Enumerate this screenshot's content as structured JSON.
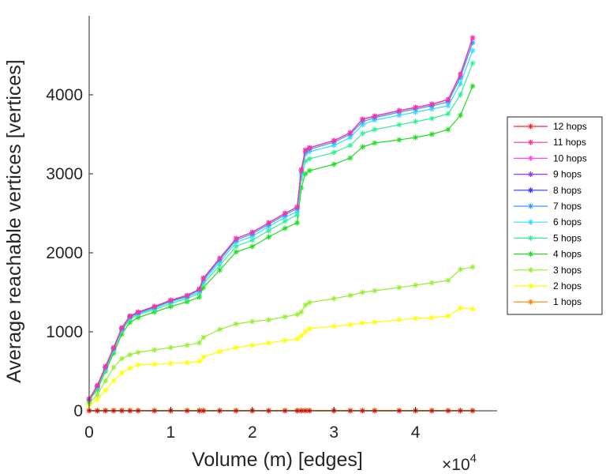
{
  "chart_data": {
    "type": "line",
    "title": "",
    "xlabel": "Volume (m) [edges]",
    "ylabel": "Average reachable vertices [vertices]",
    "x_multiplier_label": "×10",
    "x_multiplier_exp": "4",
    "xlim": [
      0,
      50000
    ],
    "ylim": [
      0,
      5000
    ],
    "x_ticks": [
      0,
      10000,
      20000,
      30000,
      40000
    ],
    "x_tick_labels": [
      "0",
      "1",
      "2",
      "3",
      "4"
    ],
    "y_ticks": [
      0,
      1000,
      2000,
      3000,
      4000
    ],
    "y_tick_labels": [
      "0",
      "1000",
      "2000",
      "3000",
      "4000"
    ],
    "legend_position": "right",
    "x": [
      0,
      1000,
      2000,
      3000,
      4000,
      5000,
      6000,
      8000,
      10000,
      12000,
      13500,
      14000,
      16000,
      18000,
      20000,
      22000,
      24000,
      25500,
      26000,
      26500,
      27000,
      30000,
      32000,
      33500,
      35000,
      38000,
      40000,
      42000,
      44000,
      45500,
      47000
    ],
    "series": [
      {
        "name": "12 hops",
        "color": "#ff2222",
        "values": [
          0,
          0,
          0,
          0,
          0,
          0,
          0,
          0,
          0,
          0,
          0,
          0,
          0,
          0,
          0,
          0,
          0,
          0,
          0,
          0,
          0,
          0,
          0,
          0,
          0,
          0,
          0,
          0,
          0,
          0,
          0
        ]
      },
      {
        "name": "11 hops",
        "color": "#ff3399",
        "values": [
          150,
          320,
          560,
          800,
          1050,
          1200,
          1250,
          1320,
          1400,
          1460,
          1540,
          1680,
          1930,
          2180,
          2260,
          2380,
          2500,
          2580,
          3050,
          3300,
          3330,
          3420,
          3520,
          3690,
          3730,
          3800,
          3840,
          3880,
          3940,
          4260,
          4720
        ]
      },
      {
        "name": "10 hops",
        "color": "#ff44ff",
        "values": [
          150,
          320,
          560,
          800,
          1050,
          1200,
          1250,
          1320,
          1400,
          1460,
          1540,
          1680,
          1930,
          2180,
          2260,
          2380,
          2500,
          2580,
          3050,
          3300,
          3330,
          3420,
          3520,
          3690,
          3730,
          3800,
          3840,
          3880,
          3940,
          4260,
          4720
        ]
      },
      {
        "name": "9 hops",
        "color": "#9933ff",
        "values": [
          150,
          320,
          560,
          800,
          1050,
          1200,
          1250,
          1320,
          1400,
          1460,
          1540,
          1680,
          1930,
          2180,
          2260,
          2380,
          2500,
          2580,
          3050,
          3300,
          3330,
          3420,
          3520,
          3690,
          3730,
          3800,
          3840,
          3880,
          3940,
          4260,
          4720
        ]
      },
      {
        "name": "8 hops",
        "color": "#3333ff",
        "values": [
          150,
          320,
          560,
          800,
          1050,
          1200,
          1250,
          1320,
          1400,
          1460,
          1540,
          1680,
          1930,
          2180,
          2260,
          2380,
          2500,
          2580,
          3050,
          3300,
          3330,
          3420,
          3520,
          3690,
          3730,
          3800,
          3840,
          3880,
          3940,
          4260,
          4720
        ]
      },
      {
        "name": "7 hops",
        "color": "#3399ff",
        "values": [
          150,
          310,
          550,
          790,
          1040,
          1190,
          1240,
          1310,
          1390,
          1450,
          1530,
          1660,
          1910,
          2160,
          2240,
          2360,
          2480,
          2560,
          3030,
          3280,
          3310,
          3400,
          3500,
          3660,
          3710,
          3780,
          3820,
          3860,
          3910,
          4220,
          4660
        ]
      },
      {
        "name": "6 hops",
        "color": "#33ddff",
        "values": [
          145,
          300,
          540,
          780,
          1030,
          1180,
          1230,
          1300,
          1380,
          1440,
          1510,
          1640,
          1880,
          2130,
          2210,
          2330,
          2450,
          2520,
          2990,
          3250,
          3280,
          3360,
          3460,
          3620,
          3680,
          3740,
          3780,
          3820,
          3860,
          4140,
          4560
        ]
      },
      {
        "name": "5 hops",
        "color": "#33ee99",
        "values": [
          140,
          290,
          520,
          760,
          1010,
          1160,
          1220,
          1280,
          1360,
          1420,
          1490,
          1610,
          1840,
          2080,
          2160,
          2280,
          2400,
          2480,
          2930,
          3160,
          3190,
          3270,
          3360,
          3510,
          3560,
          3620,
          3660,
          3700,
          3760,
          4000,
          4400
        ]
      },
      {
        "name": "4 hops",
        "color": "#22dd22",
        "values": [
          130,
          270,
          500,
          730,
          970,
          1120,
          1180,
          1250,
          1320,
          1380,
          1440,
          1560,
          1780,
          2010,
          2080,
          2200,
          2310,
          2380,
          2820,
          3000,
          3040,
          3120,
          3200,
          3340,
          3390,
          3430,
          3460,
          3500,
          3560,
          3740,
          4110
        ]
      },
      {
        "name": "3 hops",
        "color": "#99ee33",
        "values": [
          100,
          200,
          380,
          550,
          660,
          710,
          740,
          770,
          800,
          830,
          860,
          930,
          1030,
          1100,
          1130,
          1150,
          1190,
          1220,
          1250,
          1340,
          1370,
          1420,
          1460,
          1500,
          1520,
          1560,
          1590,
          1620,
          1650,
          1790,
          1820
        ]
      },
      {
        "name": "2 hops",
        "color": "#ffff00",
        "values": [
          70,
          140,
          260,
          380,
          480,
          540,
          580,
          590,
          600,
          610,
          625,
          680,
          750,
          800,
          830,
          860,
          890,
          910,
          950,
          1000,
          1040,
          1070,
          1090,
          1110,
          1120,
          1150,
          1170,
          1180,
          1200,
          1300,
          1290
        ]
      },
      {
        "name": "1 hops",
        "color": "#ff8800",
        "values": [
          5,
          5,
          5,
          5,
          5,
          5,
          5,
          5,
          5,
          5,
          5,
          5,
          5,
          5,
          5,
          5,
          5,
          5,
          5,
          5,
          5,
          5,
          5,
          5,
          5,
          5,
          5,
          5,
          5,
          5,
          5
        ]
      }
    ]
  }
}
